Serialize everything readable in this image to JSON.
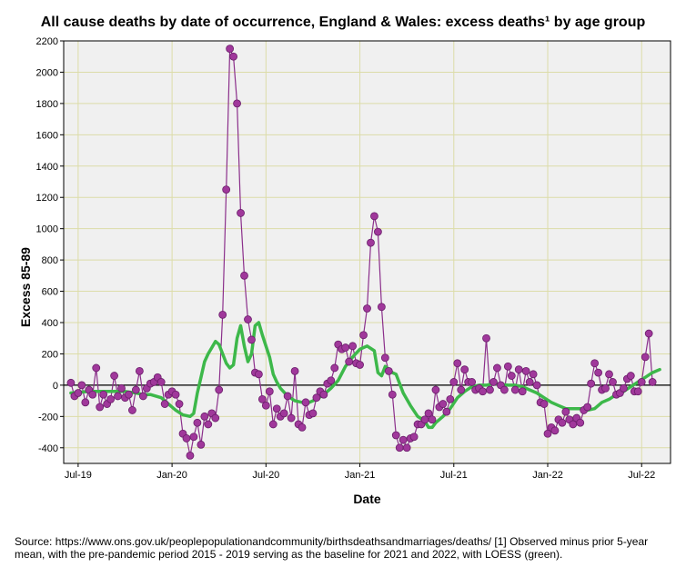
{
  "chart_data": {
    "type": "line",
    "title": "All cause deaths by date of occurrence, England & Wales: excess deaths¹ by age group",
    "xlabel": "Date",
    "ylabel": "Excess 85-89",
    "ylim": [
      -500,
      2200
    ],
    "yticks": [
      -400,
      -200,
      0,
      200,
      400,
      600,
      800,
      1000,
      1200,
      1400,
      1600,
      1800,
      2000,
      2200
    ],
    "xlim_weeks": [
      -2,
      166
    ],
    "xticks": [
      {
        "label": "Jul-19",
        "week": 2
      },
      {
        "label": "Jan-20",
        "week": 28
      },
      {
        "label": "Jul-20",
        "week": 54
      },
      {
        "label": "Jan-21",
        "week": 80
      },
      {
        "label": "Jul-21",
        "week": 106
      },
      {
        "label": "Jan-22",
        "week": 132
      },
      {
        "label": "Jul-22",
        "week": 158
      }
    ],
    "grid": true,
    "series": [
      {
        "name": "Observed excess deaths",
        "color": "#8B2F8B",
        "marker_color": "#A0389B",
        "values": [
          15,
          -70,
          -50,
          0,
          -110,
          -30,
          -60,
          110,
          -140,
          -60,
          -120,
          -90,
          60,
          -70,
          -20,
          -80,
          -60,
          -160,
          -30,
          90,
          -70,
          -20,
          10,
          20,
          50,
          20,
          -120,
          -60,
          -40,
          -60,
          -120,
          -310,
          -340,
          -450,
          -330,
          -240,
          -380,
          -200,
          -250,
          -180,
          -210,
          -30,
          450,
          1250,
          2150,
          2100,
          1800,
          1100,
          700,
          420,
          290,
          80,
          70,
          -90,
          -130,
          -40,
          -250,
          -150,
          -200,
          -180,
          -70,
          -210,
          90,
          -250,
          -270,
          -110,
          -190,
          -180,
          -80,
          -40,
          -60,
          10,
          30,
          110,
          260,
          230,
          240,
          150,
          250,
          140,
          130,
          320,
          490,
          910,
          1080,
          980,
          500,
          175,
          90,
          -60,
          -320,
          -400,
          -350,
          -400,
          -340,
          -330,
          -250,
          -250,
          -220,
          -180,
          -220,
          -30,
          -140,
          -120,
          -170,
          -90,
          20,
          140,
          -30,
          100,
          20,
          20,
          -30,
          -20,
          -40,
          300,
          -30,
          20,
          110,
          0,
          -30,
          120,
          60,
          -30,
          100,
          -40,
          90,
          20,
          70,
          0,
          -110,
          -120,
          -310,
          -270,
          -290,
          -220,
          -240,
          -170,
          -220,
          -250,
          -210,
          -240,
          -160,
          -140,
          10,
          140,
          80,
          -30,
          -20,
          70,
          20,
          -60,
          -50,
          -20,
          40,
          60,
          -40,
          -40,
          20,
          180,
          330,
          20
        ]
      },
      {
        "name": "LOESS",
        "color": "#3DB84A",
        "points": [
          [
            0,
            -50
          ],
          [
            5,
            -40
          ],
          [
            10,
            -40
          ],
          [
            15,
            -40
          ],
          [
            18,
            -50
          ],
          [
            20,
            -60
          ],
          [
            22,
            -60
          ],
          [
            25,
            -80
          ],
          [
            27,
            -120
          ],
          [
            29,
            -160
          ],
          [
            31,
            -190
          ],
          [
            33,
            -200
          ],
          [
            34,
            -180
          ],
          [
            35,
            -50
          ],
          [
            36,
            50
          ],
          [
            37,
            150
          ],
          [
            38,
            200
          ],
          [
            39,
            240
          ],
          [
            40,
            280
          ],
          [
            41,
            260
          ],
          [
            42,
            200
          ],
          [
            43,
            140
          ],
          [
            44,
            110
          ],
          [
            45,
            130
          ],
          [
            46,
            300
          ],
          [
            47,
            380
          ],
          [
            48,
            250
          ],
          [
            49,
            150
          ],
          [
            50,
            200
          ],
          [
            51,
            380
          ],
          [
            52,
            400
          ],
          [
            53,
            320
          ],
          [
            54,
            250
          ],
          [
            55,
            180
          ],
          [
            56,
            70
          ],
          [
            57,
            20
          ],
          [
            58,
            -20
          ],
          [
            60,
            -70
          ],
          [
            62,
            -100
          ],
          [
            64,
            -110
          ],
          [
            66,
            -110
          ],
          [
            68,
            -90
          ],
          [
            70,
            -60
          ],
          [
            72,
            -20
          ],
          [
            74,
            30
          ],
          [
            76,
            120
          ],
          [
            78,
            180
          ],
          [
            80,
            230
          ],
          [
            82,
            250
          ],
          [
            84,
            220
          ],
          [
            85,
            80
          ],
          [
            86,
            60
          ],
          [
            87,
            120
          ],
          [
            88,
            100
          ],
          [
            89,
            80
          ],
          [
            90,
            70
          ],
          [
            92,
            -50
          ],
          [
            94,
            -130
          ],
          [
            96,
            -200
          ],
          [
            98,
            -230
          ],
          [
            99,
            -270
          ],
          [
            100,
            -270
          ],
          [
            101,
            -240
          ],
          [
            103,
            -200
          ],
          [
            105,
            -150
          ],
          [
            107,
            -80
          ],
          [
            109,
            -40
          ],
          [
            111,
            -10
          ],
          [
            113,
            0
          ],
          [
            115,
            0
          ],
          [
            117,
            10
          ],
          [
            119,
            5
          ],
          [
            121,
            0
          ],
          [
            123,
            0
          ],
          [
            125,
            -10
          ],
          [
            127,
            -30
          ],
          [
            129,
            -50
          ],
          [
            131,
            -80
          ],
          [
            133,
            -110
          ],
          [
            135,
            -130
          ],
          [
            137,
            -150
          ],
          [
            139,
            -150
          ],
          [
            141,
            -150
          ],
          [
            143,
            -160
          ],
          [
            145,
            -150
          ],
          [
            147,
            -110
          ],
          [
            149,
            -90
          ],
          [
            151,
            -60
          ],
          [
            153,
            -40
          ],
          [
            155,
            -10
          ],
          [
            157,
            20
          ],
          [
            159,
            50
          ],
          [
            161,
            80
          ],
          [
            163,
            100
          ]
        ]
      }
    ],
    "source_note": "Source: https://www.ons.gov.uk/peoplepopulationandcommunity/birthsdeathsandmarriages/deaths/  [1] Observed minus prior 5-year mean, with the pre-pandemic period 2015 - 2019 serving as the baseline for 2021 and 2022, with LOESS (green)."
  }
}
